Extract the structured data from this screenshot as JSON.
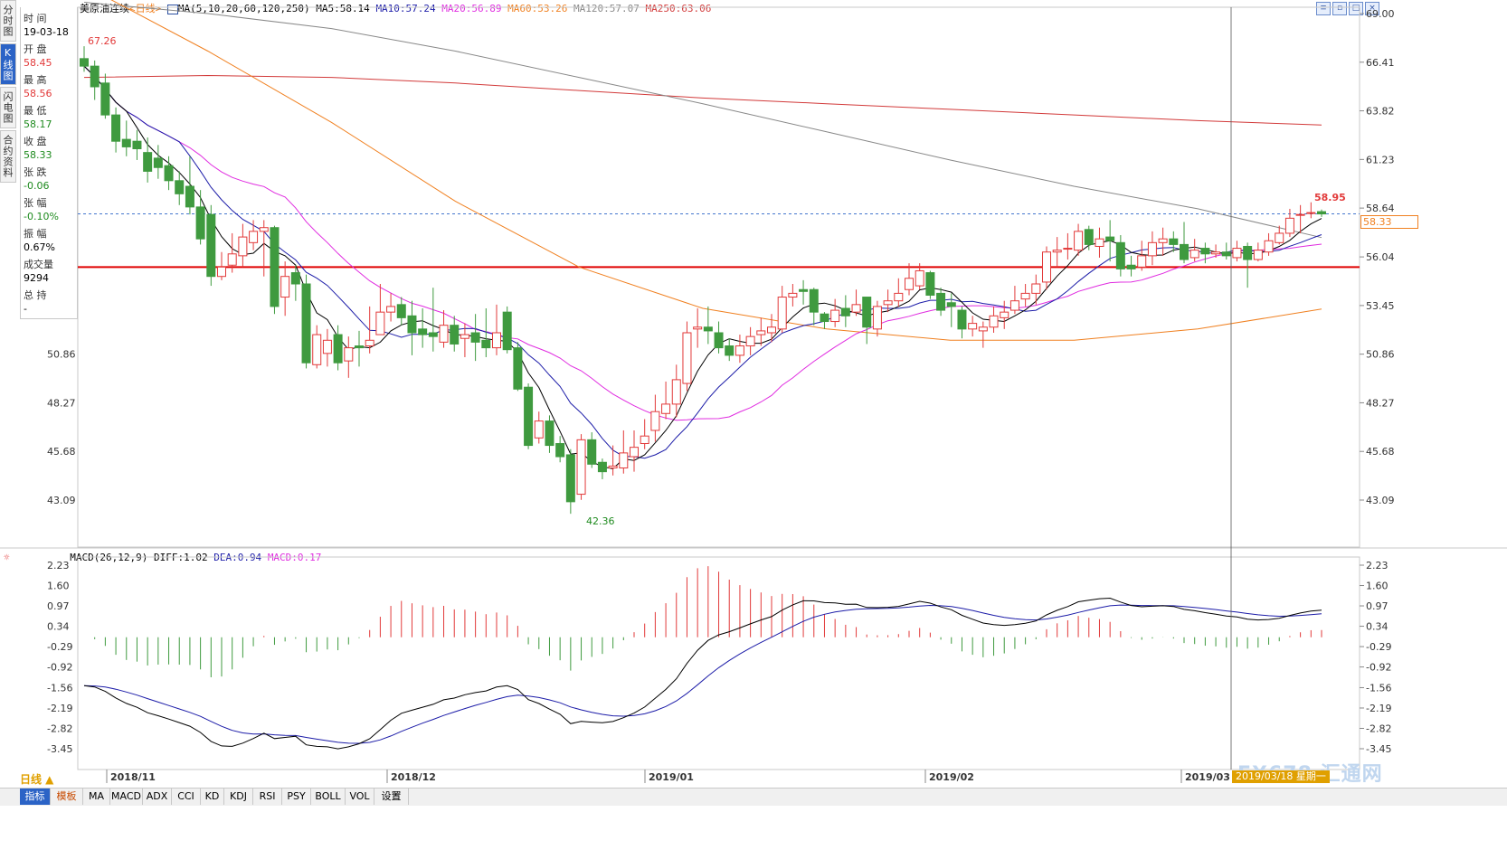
{
  "vertical_tabs": [
    "分时图",
    "K线图",
    "闪电图",
    "合约资料"
  ],
  "info_panel": {
    "time_label": "时 间",
    "time_value": "19-03-18",
    "open_label": "开 盘",
    "open_value": "58.45",
    "high_label": "最 高",
    "high_value": "58.56",
    "low_label": "最 低",
    "low_value": "58.17",
    "close_label": "收 盘",
    "close_value": "58.33",
    "change_label": "张 跌",
    "change_value": "-0.06",
    "pct_label": "张 幅",
    "pct_value": "-0.10%",
    "amp_label": "振 幅",
    "amp_value": "0.67%",
    "vol_label": "成交量",
    "vol_value": "9294",
    "oi_label": "总 持",
    "oi_value": "-"
  },
  "main_title": {
    "symbol": "美原油连续",
    "period": "<日线>",
    "ma_params": "MA(5,10,20,60,120,250)",
    "ma5": "MA5:58.14",
    "ma10": "MA10:57.24",
    "ma20": "MA20:56.89",
    "ma60": "MA60:53.26",
    "ma120": "MA120:57.07",
    "ma250": "MA250:63.06"
  },
  "macd_title": {
    "params": "MACD(26,12,9)",
    "diff": "DIFF:1.02",
    "dea": "DEA:0.94",
    "macd": "MACD:0.17"
  },
  "colors": {
    "up": "#e23a3a",
    "down": "#3f9a3f",
    "ma5": "#000000",
    "ma10": "#1c1ca8",
    "ma20": "#e02ce0",
    "ma60": "#f08020",
    "ma120": "#888888",
    "ma250": "#d23a3a",
    "dea": "#1c1ca8",
    "diff": "#000000"
  },
  "price_axis": [
    "69.00",
    "66.41",
    "63.82",
    "61.23",
    "58.64",
    "56.04",
    "53.45",
    "50.86",
    "48.27",
    "45.68",
    "43.09"
  ],
  "left_price_axis": [
    "50.86",
    "48.27",
    "45.68",
    "43.09"
  ],
  "macd_axis": [
    "2.23",
    "1.60",
    "0.97",
    "0.34",
    "-0.29",
    "-0.92",
    "-1.56",
    "-2.19",
    "-2.82",
    "-3.45"
  ],
  "left_macd_axis": [
    "2.23",
    "1.60",
    "0.97",
    "0.34",
    "-0.29",
    "-0.92",
    "-1.56",
    "-2.19",
    "-2.82",
    "-3.45"
  ],
  "date_axis": [
    "2018/11",
    "2018/12",
    "2019/01",
    "2019/02",
    "2019/03"
  ],
  "annotations": {
    "high": "67.26",
    "low": "42.36",
    "recent_high": "58.95",
    "last_price": "58.33"
  },
  "cursor_date": "2019/03/18",
  "cursor_weekday": "星期一",
  "period_button": "日线 ▲",
  "toolbar": [
    "指标",
    "模板",
    "MA",
    "MACD",
    "ADX",
    "CCI",
    "KD",
    "KDJ",
    "RSI",
    "PSY",
    "BOLL",
    "VOL",
    "设置"
  ],
  "watermark": "FX678 汇通网",
  "chart_data": {
    "type": "candlestick",
    "price_ylim": [
      42.36,
      69.0
    ],
    "support_line": 55.5,
    "candles": [
      [
        66.6,
        66.2,
        67.26,
        65.9
      ],
      [
        66.2,
        65.1,
        66.5,
        64.4
      ],
      [
        65.3,
        63.6,
        65.8,
        63.4
      ],
      [
        63.6,
        62.2,
        64.0,
        61.6
      ],
      [
        62.3,
        61.9,
        63.3,
        61.4
      ],
      [
        62.2,
        61.8,
        62.8,
        61.2
      ],
      [
        61.6,
        60.6,
        62.4,
        60.0
      ],
      [
        61.3,
        60.8,
        62.0,
        60.2
      ],
      [
        60.9,
        60.1,
        61.4,
        59.6
      ],
      [
        60.1,
        59.4,
        60.6,
        58.8
      ],
      [
        59.8,
        58.7,
        61.4,
        58.3
      ],
      [
        58.7,
        57.0,
        59.6,
        56.7
      ],
      [
        58.3,
        55.0,
        58.8,
        54.5
      ],
      [
        55.0,
        55.5,
        56.3,
        54.8
      ],
      [
        55.6,
        56.2,
        57.3,
        55.2
      ],
      [
        56.1,
        57.1,
        57.8,
        55.5
      ],
      [
        56.8,
        57.4,
        58.0,
        56.4
      ],
      [
        57.4,
        57.6,
        58.0,
        55.0
      ],
      [
        57.6,
        53.4,
        57.7,
        53.0
      ],
      [
        53.9,
        55.0,
        55.8,
        52.9
      ],
      [
        55.2,
        54.6,
        55.6,
        53.7
      ],
      [
        54.6,
        50.4,
        55.1,
        50.1
      ],
      [
        50.3,
        51.9,
        52.4,
        50.1
      ],
      [
        50.9,
        51.6,
        52.2,
        50.2
      ],
      [
        51.9,
        50.4,
        52.4,
        50.0
      ],
      [
        50.5,
        51.2,
        51.8,
        49.6
      ],
      [
        51.3,
        51.2,
        52.1,
        50.2
      ],
      [
        51.3,
        51.6,
        53.4,
        50.9
      ],
      [
        51.9,
        53.1,
        54.6,
        52.2
      ],
      [
        53.1,
        53.4,
        54.1,
        52.6
      ],
      [
        53.5,
        52.8,
        53.9,
        52.4
      ],
      [
        52.9,
        52.0,
        53.7,
        50.8
      ],
      [
        52.2,
        51.9,
        53.3,
        51.2
      ],
      [
        52.0,
        51.8,
        54.4,
        51.0
      ],
      [
        51.5,
        52.4,
        53.2,
        51.2
      ],
      [
        52.4,
        51.4,
        52.9,
        51.0
      ],
      [
        51.7,
        51.9,
        52.5,
        50.7
      ],
      [
        52.0,
        51.5,
        53.0,
        50.5
      ],
      [
        51.6,
        51.2,
        53.3,
        50.7
      ],
      [
        51.2,
        52.0,
        53.5,
        50.8
      ],
      [
        53.1,
        51.1,
        53.4,
        50.9
      ],
      [
        51.2,
        49.0,
        51.5,
        48.9
      ],
      [
        49.1,
        46.0,
        49.3,
        45.8
      ],
      [
        46.4,
        47.3,
        47.8,
        46.1
      ],
      [
        47.3,
        46.0,
        47.6,
        45.6
      ],
      [
        46.1,
        45.4,
        46.5,
        45.1
      ],
      [
        45.5,
        43.0,
        45.8,
        42.36
      ],
      [
        43.4,
        46.3,
        46.6,
        43.1
      ],
      [
        46.3,
        45.0,
        46.7,
        44.8
      ],
      [
        45.1,
        44.6,
        45.3,
        44.2
      ],
      [
        44.8,
        44.9,
        46.0,
        44.4
      ],
      [
        44.8,
        45.6,
        46.8,
        44.5
      ],
      [
        45.4,
        45.9,
        46.8,
        44.6
      ],
      [
        46.1,
        46.5,
        47.4,
        45.8
      ],
      [
        46.8,
        47.8,
        48.7,
        46.2
      ],
      [
        47.7,
        48.2,
        49.4,
        47.4
      ],
      [
        48.2,
        49.5,
        50.3,
        47.5
      ],
      [
        49.3,
        52.0,
        52.6,
        48.9
      ],
      [
        52.2,
        52.3,
        53.3,
        51.2
      ],
      [
        52.3,
        52.1,
        53.4,
        51.4
      ],
      [
        52.0,
        51.2,
        52.6,
        50.9
      ],
      [
        51.3,
        50.8,
        51.7,
        50.5
      ],
      [
        50.8,
        51.3,
        51.9,
        50.4
      ],
      [
        51.3,
        51.8,
        52.3,
        50.8
      ],
      [
        51.9,
        52.1,
        52.8,
        51.3
      ],
      [
        52.0,
        52.3,
        53.0,
        51.5
      ],
      [
        52.2,
        53.9,
        54.5,
        52.0
      ],
      [
        53.9,
        54.1,
        54.6,
        53.4
      ],
      [
        54.3,
        54.2,
        54.8,
        53.5
      ],
      [
        54.3,
        53.1,
        54.4,
        52.4
      ],
      [
        53.0,
        52.6,
        53.1,
        52.2
      ],
      [
        52.6,
        53.2,
        53.8,
        52.3
      ],
      [
        53.3,
        52.9,
        54.0,
        52.3
      ],
      [
        53.1,
        53.5,
        54.3,
        52.9
      ],
      [
        53.9,
        52.3,
        53.9,
        51.4
      ],
      [
        52.2,
        53.4,
        53.7,
        51.8
      ],
      [
        53.5,
        53.7,
        54.3,
        53.1
      ],
      [
        53.7,
        54.1,
        54.9,
        53.4
      ],
      [
        54.3,
        54.9,
        55.7,
        54.0
      ],
      [
        54.5,
        55.3,
        55.7,
        54.3
      ],
      [
        55.2,
        54.0,
        55.3,
        53.8
      ],
      [
        54.1,
        53.2,
        54.4,
        52.9
      ],
      [
        53.6,
        53.4,
        54.1,
        52.3
      ],
      [
        53.2,
        52.2,
        53.4,
        51.7
      ],
      [
        52.2,
        52.5,
        52.9,
        51.8
      ],
      [
        52.1,
        52.3,
        52.6,
        51.2
      ],
      [
        52.3,
        52.9,
        53.4,
        52.0
      ],
      [
        52.8,
        53.1,
        53.7,
        52.2
      ],
      [
        53.2,
        53.7,
        54.5,
        53.0
      ],
      [
        53.8,
        54.1,
        54.6,
        53.4
      ],
      [
        54.1,
        54.6,
        55.1,
        53.5
      ],
      [
        54.7,
        56.3,
        56.6,
        54.3
      ],
      [
        56.3,
        56.4,
        57.1,
        55.5
      ],
      [
        56.5,
        56.5,
        57.3,
        55.9
      ],
      [
        56.4,
        57.4,
        57.8,
        56.1
      ],
      [
        57.5,
        56.7,
        57.7,
        56.4
      ],
      [
        56.6,
        57.0,
        57.6,
        56.0
      ],
      [
        57.1,
        56.9,
        58.0,
        55.8
      ],
      [
        56.8,
        55.4,
        57.2,
        55.0
      ],
      [
        55.6,
        55.4,
        56.1,
        55.0
      ],
      [
        55.5,
        56.1,
        56.9,
        55.3
      ],
      [
        56.1,
        56.8,
        57.4,
        55.6
      ],
      [
        56.8,
        57.0,
        57.6,
        56.1
      ],
      [
        57.0,
        56.7,
        57.4,
        56.3
      ],
      [
        56.7,
        55.9,
        57.9,
        55.7
      ],
      [
        56.0,
        56.4,
        57.0,
        55.8
      ],
      [
        56.5,
        56.2,
        56.8,
        55.7
      ],
      [
        56.2,
        56.3,
        56.7,
        56.0
      ],
      [
        56.3,
        56.1,
        56.8,
        55.9
      ],
      [
        56.0,
        56.5,
        56.9,
        55.8
      ],
      [
        56.6,
        55.9,
        56.8,
        54.4
      ],
      [
        55.9,
        56.4,
        56.8,
        55.8
      ],
      [
        56.3,
        56.9,
        57.3,
        56.1
      ],
      [
        56.8,
        57.3,
        57.7,
        56.7
      ],
      [
        57.3,
        58.1,
        58.6,
        57.1
      ],
      [
        58.3,
        58.3,
        58.8,
        57.3
      ],
      [
        58.4,
        58.4,
        58.95,
        58.1
      ],
      [
        58.45,
        58.33,
        58.56,
        58.17
      ]
    ],
    "ma5": [],
    "macd": {
      "ylim": [
        -3.45,
        2.23
      ],
      "diff_last": 1.02,
      "dea_last": 0.94,
      "macd_last": 0.17
    }
  }
}
